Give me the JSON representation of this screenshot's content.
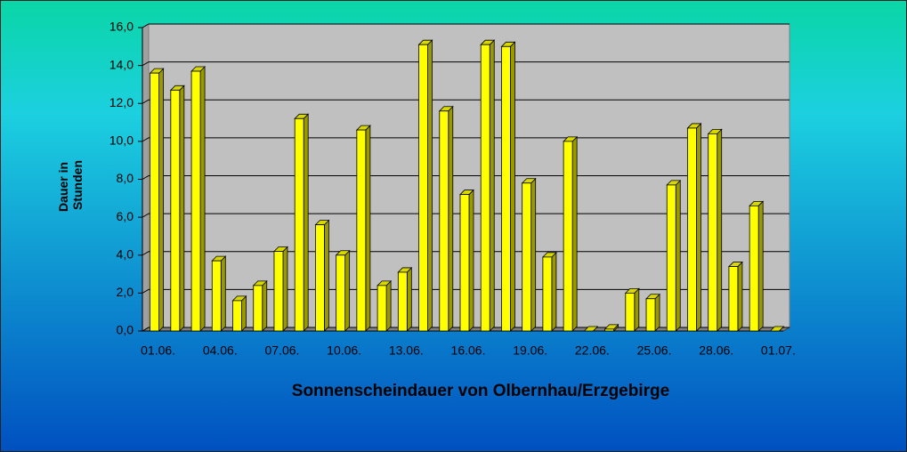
{
  "chart_data": {
    "type": "bar3d",
    "title": "Sonnenscheindauer von Olbernhau/Erzgebirge",
    "ylabel": [
      "Dauer in",
      "Stunden"
    ],
    "categories": [
      "01.06.",
      null,
      null,
      "04.06.",
      null,
      null,
      "07.06.",
      null,
      null,
      "10.06.",
      null,
      null,
      "13.06.",
      null,
      null,
      "16.06.",
      null,
      null,
      "19.06.",
      null,
      null,
      "22.06.",
      null,
      null,
      "25.06.",
      null,
      null,
      "28.06.",
      null,
      null,
      "01.07."
    ],
    "values": [
      13.6,
      12.7,
      13.7,
      3.7,
      1.6,
      2.4,
      4.2,
      11.2,
      5.6,
      4.0,
      10.6,
      2.4,
      3.1,
      15.1,
      11.6,
      7.2,
      15.1,
      15.0,
      7.8,
      3.9,
      10.0,
      0,
      0.1,
      2.0,
      1.7,
      7.7,
      10.7,
      10.4,
      3.4,
      6.6,
      0
    ],
    "color": "#ffff00",
    "ylim": [
      0,
      16
    ],
    "yticks": [
      {
        "value": 0,
        "label": "0,0"
      },
      {
        "value": 2,
        "label": "2,0"
      },
      {
        "value": 4,
        "label": "4,0"
      },
      {
        "value": 6,
        "label": "6,0"
      },
      {
        "value": 8,
        "label": "8,0"
      },
      {
        "value": 10,
        "label": "10,0"
      },
      {
        "value": 12,
        "label": "12,0"
      },
      {
        "value": 14,
        "label": "14,0"
      },
      {
        "value": 16,
        "label": "16,0"
      }
    ],
    "grid": true
  }
}
